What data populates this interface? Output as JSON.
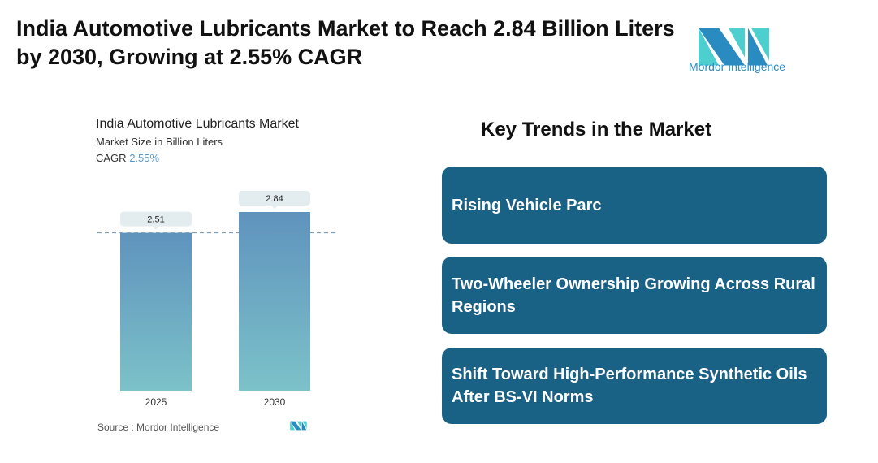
{
  "title": "India Automotive Lubricants Market to Reach 2.84 Billion Liters by 2030, Growing at 2.55% CAGR",
  "logo": {
    "text": "Mordor Intelligence",
    "colors": [
      "#2a8bc0",
      "#4dcfd0"
    ]
  },
  "chart_data": {
    "type": "bar",
    "title": "India Automotive Lubricants Market",
    "subtitle": "Market Size in Billion Liters",
    "cagr_label": "CAGR",
    "cagr_value": "2.55%",
    "categories": [
      "2025",
      "2030"
    ],
    "values": [
      2.51,
      2.84
    ],
    "data_labels": [
      "2.51",
      "2.84"
    ],
    "ylim": [
      0,
      2.84
    ],
    "reference_line": 2.51,
    "colors": {
      "bar_top": "#5f93bd",
      "bar_bottom": "#7cc2c9",
      "label_bg": "#e3ecef",
      "ref_line": "#6f97b8"
    },
    "source": "Source :  Mordor Intelligence"
  },
  "key_trends": {
    "title": "Key Trends in the Market",
    "color": "#1a6186",
    "items": [
      "Rising Vehicle Parc",
      "Two-Wheeler Ownership Growing Across Rural Regions",
      "Shift Toward High-Performance Synthetic Oils After BS-VI Norms"
    ]
  }
}
